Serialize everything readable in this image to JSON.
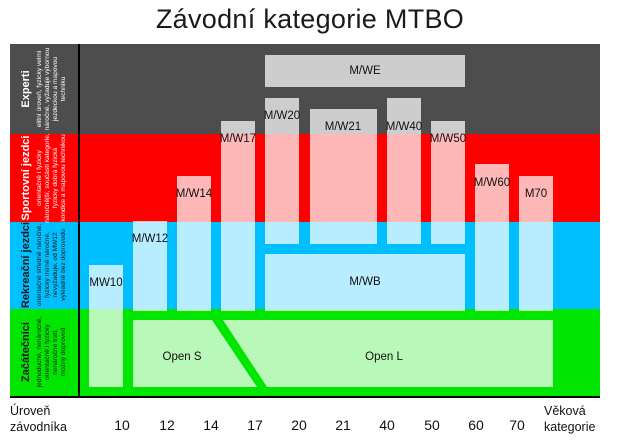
{
  "title": "Závodní kategorie MTBO",
  "bands": [
    {
      "id": "experti",
      "title": "Experti",
      "desc": [
        "elitní úroveň, fyzicky velmi",
        "náročné, vyžaduje výbornou",
        "jezdeckou a mapovou",
        "techniku"
      ],
      "color": "#4d4d4d",
      "text_color": "#ffffff"
    },
    {
      "id": "sportovni",
      "title": "Sportovní jezdci",
      "desc": [
        "orientačně i fyzicky",
        "náročnější, součástí kategorie,",
        "fyzicky dobrá fyzická",
        "kondice a mapovou technikou"
      ],
      "color": "#ff0000",
      "text_color": "#ffffff"
    },
    {
      "id": "rekreacni",
      "title": "Rekreační jezdci",
      "desc": [
        "orientačně středně náročné,",
        "fyzicky mírně náročné,",
        "nevyžaduje, od MW12",
        "výkladně bez doprovodu"
      ],
      "color": "#00bfff",
      "text_color": "#1a1a1a"
    },
    {
      "id": "zacatecnici",
      "title": "Začátečníci",
      "desc": [
        "jednoduché, nenáročné,",
        "orientačně i fyzicky",
        "nenáročné trati,",
        "možný doprovod"
      ],
      "color": "#00e600",
      "text_color": "#1a1a1a"
    }
  ],
  "categories": [
    {
      "label": "M/WE"
    },
    {
      "label": "M/W20"
    },
    {
      "label": "M/W21"
    },
    {
      "label": "M/W40"
    },
    {
      "label": "M/W50"
    },
    {
      "label": "M/W17"
    },
    {
      "label": "M/W14"
    },
    {
      "label": "M/W60"
    },
    {
      "label": "M70"
    },
    {
      "label": "M/W12"
    },
    {
      "label": "MW10"
    },
    {
      "label": "M/WB"
    },
    {
      "label": "Open S"
    },
    {
      "label": "Open L"
    }
  ],
  "axis": {
    "y_label": [
      "Úroveň",
      "závodníka"
    ],
    "x_label": [
      "Věková",
      "kategorie"
    ],
    "ticks": [
      "10",
      "12",
      "14",
      "17",
      "20",
      "21",
      "40",
      "50",
      "60",
      "70"
    ]
  }
}
